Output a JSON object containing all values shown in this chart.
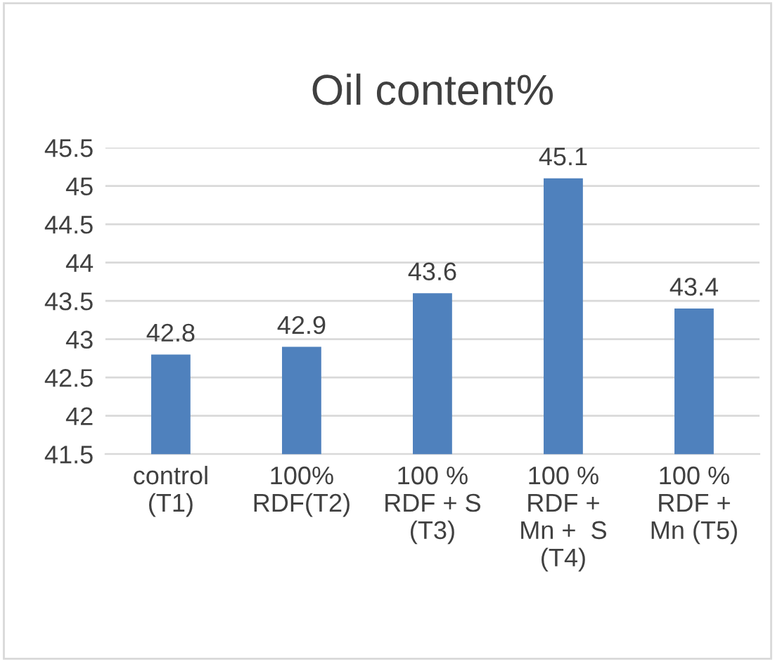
{
  "chart_data": {
    "type": "bar",
    "title": "Oil content%",
    "categories": [
      "control\n(T1)",
      "100%\nRDF(T2)",
      "100 %\nRDF + S\n(T3)",
      "100 %\nRDF +\nMn +  S\n(T4)",
      "100 %\nRDF +\nMn (T5)"
    ],
    "values": [
      42.8,
      42.9,
      43.6,
      45.1,
      43.4
    ],
    "color": "#4f81bd",
    "ylim": [
      41.5,
      45.5
    ],
    "yticks": [
      41.5,
      42,
      42.5,
      43,
      43.5,
      44,
      44.5,
      45,
      45.5
    ],
    "grid": "y",
    "data_labels": true
  }
}
